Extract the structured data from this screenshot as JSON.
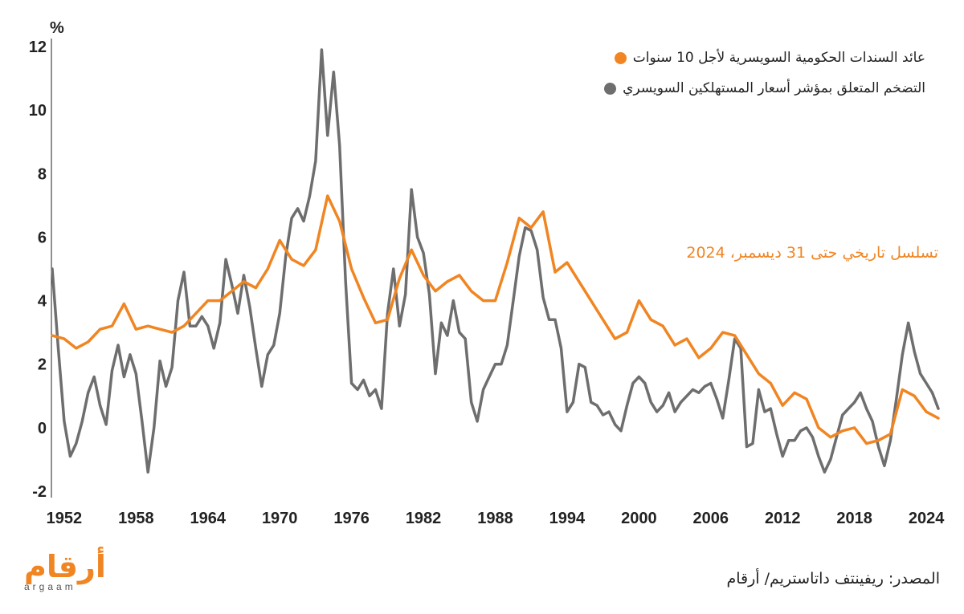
{
  "colors": {
    "accent": "#f08522",
    "series1": "#f08522",
    "series2": "#6e6e6e",
    "axis": "#222222"
  },
  "legend": {
    "item1": "عائد السندات الحكومية السويسرية لأجل 10 سنوات",
    "item2": "التضخم المتعلق بمؤشر أسعار المستهلكين السويسري"
  },
  "annotation": "تسلسل تاريخي حتى 31 ديسمبر، 2024",
  "source": "المصدر: ريفينتف داتاستريم/ أرقام",
  "logo": {
    "arabic": "أرقام",
    "latin": "argaam"
  },
  "chart_data": {
    "type": "line",
    "y_unit": "%",
    "xlim": [
      1951,
      2025
    ],
    "ylim": [
      -2,
      12
    ],
    "x_ticks": [
      "1952",
      "1958",
      "1964",
      "1970",
      "1976",
      "1982",
      "1988",
      "1994",
      "2000",
      "2006",
      "2012",
      "2018",
      "2024"
    ],
    "y_ticks": [
      "-2",
      "0",
      "2",
      "4",
      "6",
      "8",
      "10",
      "12"
    ],
    "grid": false,
    "legend_position": "top-right",
    "series": [
      {
        "name": "عائد السندات الحكومية السويسرية لأجل 10 سنوات",
        "points": [
          [
            1951,
            2.9
          ],
          [
            1952,
            2.8
          ],
          [
            1953,
            2.5
          ],
          [
            1954,
            2.7
          ],
          [
            1955,
            3.1
          ],
          [
            1956,
            3.2
          ],
          [
            1957,
            3.9
          ],
          [
            1958,
            3.1
          ],
          [
            1959,
            3.2
          ],
          [
            1960,
            3.1
          ],
          [
            1961,
            3.0
          ],
          [
            1962,
            3.2
          ],
          [
            1963,
            3.6
          ],
          [
            1964,
            4.0
          ],
          [
            1965,
            4.0
          ],
          [
            1966,
            4.3
          ],
          [
            1967,
            4.6
          ],
          [
            1968,
            4.4
          ],
          [
            1969,
            5.0
          ],
          [
            1970,
            5.9
          ],
          [
            1971,
            5.3
          ],
          [
            1972,
            5.1
          ],
          [
            1973,
            5.6
          ],
          [
            1974,
            7.3
          ],
          [
            1975,
            6.5
          ],
          [
            1976,
            5.0
          ],
          [
            1977,
            4.1
          ],
          [
            1978,
            3.3
          ],
          [
            1979,
            3.4
          ],
          [
            1980,
            4.7
          ],
          [
            1981,
            5.6
          ],
          [
            1982,
            4.8
          ],
          [
            1983,
            4.3
          ],
          [
            1984,
            4.6
          ],
          [
            1985,
            4.8
          ],
          [
            1986,
            4.3
          ],
          [
            1987,
            4.0
          ],
          [
            1988,
            4.0
          ],
          [
            1989,
            5.2
          ],
          [
            1990,
            6.6
          ],
          [
            1991,
            6.3
          ],
          [
            1992,
            6.8
          ],
          [
            1993,
            4.9
          ],
          [
            1994,
            5.2
          ],
          [
            1995,
            4.6
          ],
          [
            1996,
            4.0
          ],
          [
            1997,
            3.4
          ],
          [
            1998,
            2.8
          ],
          [
            1999,
            3.0
          ],
          [
            2000,
            4.0
          ],
          [
            2001,
            3.4
          ],
          [
            2002,
            3.2
          ],
          [
            2003,
            2.6
          ],
          [
            2004,
            2.8
          ],
          [
            2005,
            2.2
          ],
          [
            2006,
            2.5
          ],
          [
            2007,
            3.0
          ],
          [
            2008,
            2.9
          ],
          [
            2009,
            2.3
          ],
          [
            2010,
            1.7
          ],
          [
            2011,
            1.4
          ],
          [
            2012,
            0.7
          ],
          [
            2013,
            1.1
          ],
          [
            2014,
            0.9
          ],
          [
            2015,
            0.0
          ],
          [
            2016,
            -0.3
          ],
          [
            2017,
            -0.1
          ],
          [
            2018,
            0.0
          ],
          [
            2019,
            -0.5
          ],
          [
            2020,
            -0.4
          ],
          [
            2021,
            -0.2
          ],
          [
            2022,
            1.2
          ],
          [
            2023,
            1.0
          ],
          [
            2024,
            0.5
          ],
          [
            2025,
            0.3
          ]
        ]
      },
      {
        "name": "التضخم المتعلق بمؤشر أسعار المستهلكين السويسري",
        "points": [
          [
            1951,
            5.0
          ],
          [
            1951.5,
            2.5
          ],
          [
            1952,
            0.2
          ],
          [
            1952.5,
            -0.9
          ],
          [
            1953,
            -0.5
          ],
          [
            1953.5,
            0.2
          ],
          [
            1954,
            1.1
          ],
          [
            1954.5,
            1.6
          ],
          [
            1955,
            0.7
          ],
          [
            1955.5,
            0.1
          ],
          [
            1956,
            1.8
          ],
          [
            1956.5,
            2.6
          ],
          [
            1957,
            1.6
          ],
          [
            1957.5,
            2.3
          ],
          [
            1958,
            1.7
          ],
          [
            1958.5,
            0.2
          ],
          [
            1959,
            -1.4
          ],
          [
            1959.5,
            0.0
          ],
          [
            1960,
            2.1
          ],
          [
            1960.5,
            1.3
          ],
          [
            1961,
            1.9
          ],
          [
            1961.5,
            4.0
          ],
          [
            1962,
            4.9
          ],
          [
            1962.5,
            3.2
          ],
          [
            1963,
            3.2
          ],
          [
            1963.5,
            3.5
          ],
          [
            1964,
            3.2
          ],
          [
            1964.5,
            2.5
          ],
          [
            1965,
            3.3
          ],
          [
            1965.5,
            5.3
          ],
          [
            1966,
            4.5
          ],
          [
            1966.5,
            3.6
          ],
          [
            1967,
            4.8
          ],
          [
            1967.5,
            3.8
          ],
          [
            1968,
            2.5
          ],
          [
            1968.5,
            1.3
          ],
          [
            1969,
            2.3
          ],
          [
            1969.5,
            2.6
          ],
          [
            1970,
            3.6
          ],
          [
            1970.5,
            5.4
          ],
          [
            1971,
            6.6
          ],
          [
            1971.5,
            6.9
          ],
          [
            1972,
            6.5
          ],
          [
            1972.5,
            7.3
          ],
          [
            1973,
            8.4
          ],
          [
            1973.5,
            11.9
          ],
          [
            1974,
            9.2
          ],
          [
            1974.5,
            11.2
          ],
          [
            1975,
            8.9
          ],
          [
            1975.5,
            4.6
          ],
          [
            1976,
            1.4
          ],
          [
            1976.5,
            1.2
          ],
          [
            1977,
            1.5
          ],
          [
            1977.5,
            1.0
          ],
          [
            1978,
            1.2
          ],
          [
            1978.5,
            0.6
          ],
          [
            1979,
            3.6
          ],
          [
            1979.5,
            5.0
          ],
          [
            1980,
            3.2
          ],
          [
            1980.5,
            4.2
          ],
          [
            1981,
            7.5
          ],
          [
            1981.5,
            6.0
          ],
          [
            1982,
            5.5
          ],
          [
            1982.5,
            4.2
          ],
          [
            1983,
            1.7
          ],
          [
            1983.5,
            3.3
          ],
          [
            1984,
            2.9
          ],
          [
            1984.5,
            4.0
          ],
          [
            1985,
            3.0
          ],
          [
            1985.5,
            2.8
          ],
          [
            1986,
            0.8
          ],
          [
            1986.5,
            0.2
          ],
          [
            1987,
            1.2
          ],
          [
            1987.5,
            1.6
          ],
          [
            1988,
            2.0
          ],
          [
            1988.5,
            2.0
          ],
          [
            1989,
            2.6
          ],
          [
            1989.5,
            4.0
          ],
          [
            1990,
            5.4
          ],
          [
            1990.5,
            6.3
          ],
          [
            1991,
            6.2
          ],
          [
            1991.5,
            5.6
          ],
          [
            1992,
            4.1
          ],
          [
            1992.5,
            3.4
          ],
          [
            1993,
            3.4
          ],
          [
            1993.5,
            2.5
          ],
          [
            1994,
            0.5
          ],
          [
            1994.5,
            0.8
          ],
          [
            1995,
            2.0
          ],
          [
            1995.5,
            1.9
          ],
          [
            1996,
            0.8
          ],
          [
            1996.5,
            0.7
          ],
          [
            1997,
            0.4
          ],
          [
            1997.5,
            0.5
          ],
          [
            1998,
            0.1
          ],
          [
            1998.5,
            -0.1
          ],
          [
            1999,
            0.7
          ],
          [
            1999.5,
            1.4
          ],
          [
            2000,
            1.6
          ],
          [
            2000.5,
            1.4
          ],
          [
            2001,
            0.8
          ],
          [
            2001.5,
            0.5
          ],
          [
            2002,
            0.7
          ],
          [
            2002.5,
            1.1
          ],
          [
            2003,
            0.5
          ],
          [
            2003.5,
            0.8
          ],
          [
            2004,
            1.0
          ],
          [
            2004.5,
            1.2
          ],
          [
            2005,
            1.1
          ],
          [
            2005.5,
            1.3
          ],
          [
            2006,
            1.4
          ],
          [
            2006.5,
            0.9
          ],
          [
            2007,
            0.3
          ],
          [
            2007.5,
            1.5
          ],
          [
            2008,
            2.8
          ],
          [
            2008.5,
            2.5
          ],
          [
            2009,
            -0.6
          ],
          [
            2009.5,
            -0.5
          ],
          [
            2010,
            1.2
          ],
          [
            2010.5,
            0.5
          ],
          [
            2011,
            0.6
          ],
          [
            2011.5,
            -0.2
          ],
          [
            2012,
            -0.9
          ],
          [
            2012.5,
            -0.4
          ],
          [
            2013,
            -0.4
          ],
          [
            2013.5,
            -0.1
          ],
          [
            2014,
            0.0
          ],
          [
            2014.5,
            -0.3
          ],
          [
            2015,
            -0.9
          ],
          [
            2015.5,
            -1.4
          ],
          [
            2016,
            -1.0
          ],
          [
            2016.5,
            -0.3
          ],
          [
            2017,
            0.4
          ],
          [
            2017.5,
            0.6
          ],
          [
            2018,
            0.8
          ],
          [
            2018.5,
            1.1
          ],
          [
            2019,
            0.6
          ],
          [
            2019.5,
            0.2
          ],
          [
            2020,
            -0.6
          ],
          [
            2020.5,
            -1.2
          ],
          [
            2021,
            -0.4
          ],
          [
            2021.5,
            0.9
          ],
          [
            2022,
            2.3
          ],
          [
            2022.5,
            3.3
          ],
          [
            2023,
            2.4
          ],
          [
            2023.5,
            1.7
          ],
          [
            2024,
            1.4
          ],
          [
            2024.5,
            1.1
          ],
          [
            2025,
            0.6
          ]
        ]
      }
    ]
  }
}
